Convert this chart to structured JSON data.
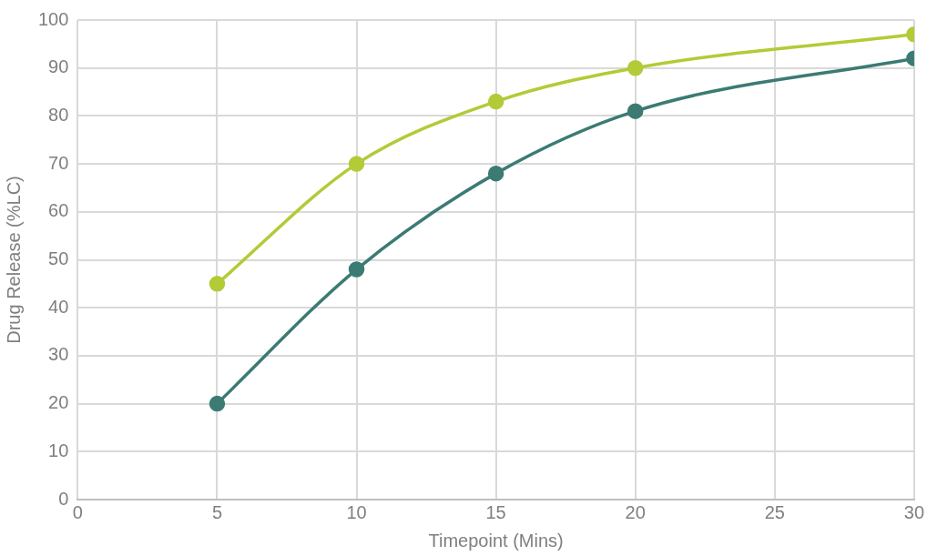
{
  "chart_data": {
    "type": "line",
    "xlabel": "Timepoint (Mins)",
    "ylabel": "Drug Release (%LC)",
    "x": [
      5,
      10,
      15,
      20,
      30
    ],
    "series": [
      {
        "color": "#b2cb36",
        "values": [
          45,
          70,
          83,
          90,
          97
        ]
      },
      {
        "color": "#3b7b73",
        "values": [
          20,
          48,
          68,
          81,
          92
        ]
      }
    ],
    "xlim": [
      0,
      30
    ],
    "xticks": [
      0,
      5,
      10,
      15,
      20,
      25,
      30
    ],
    "ylim": [
      0,
      100
    ],
    "yticks": [
      0,
      10,
      20,
      30,
      40,
      50,
      60,
      70,
      80,
      90,
      100
    ],
    "grid": true,
    "legend": false,
    "marker": "circle",
    "line_style": "solid"
  }
}
